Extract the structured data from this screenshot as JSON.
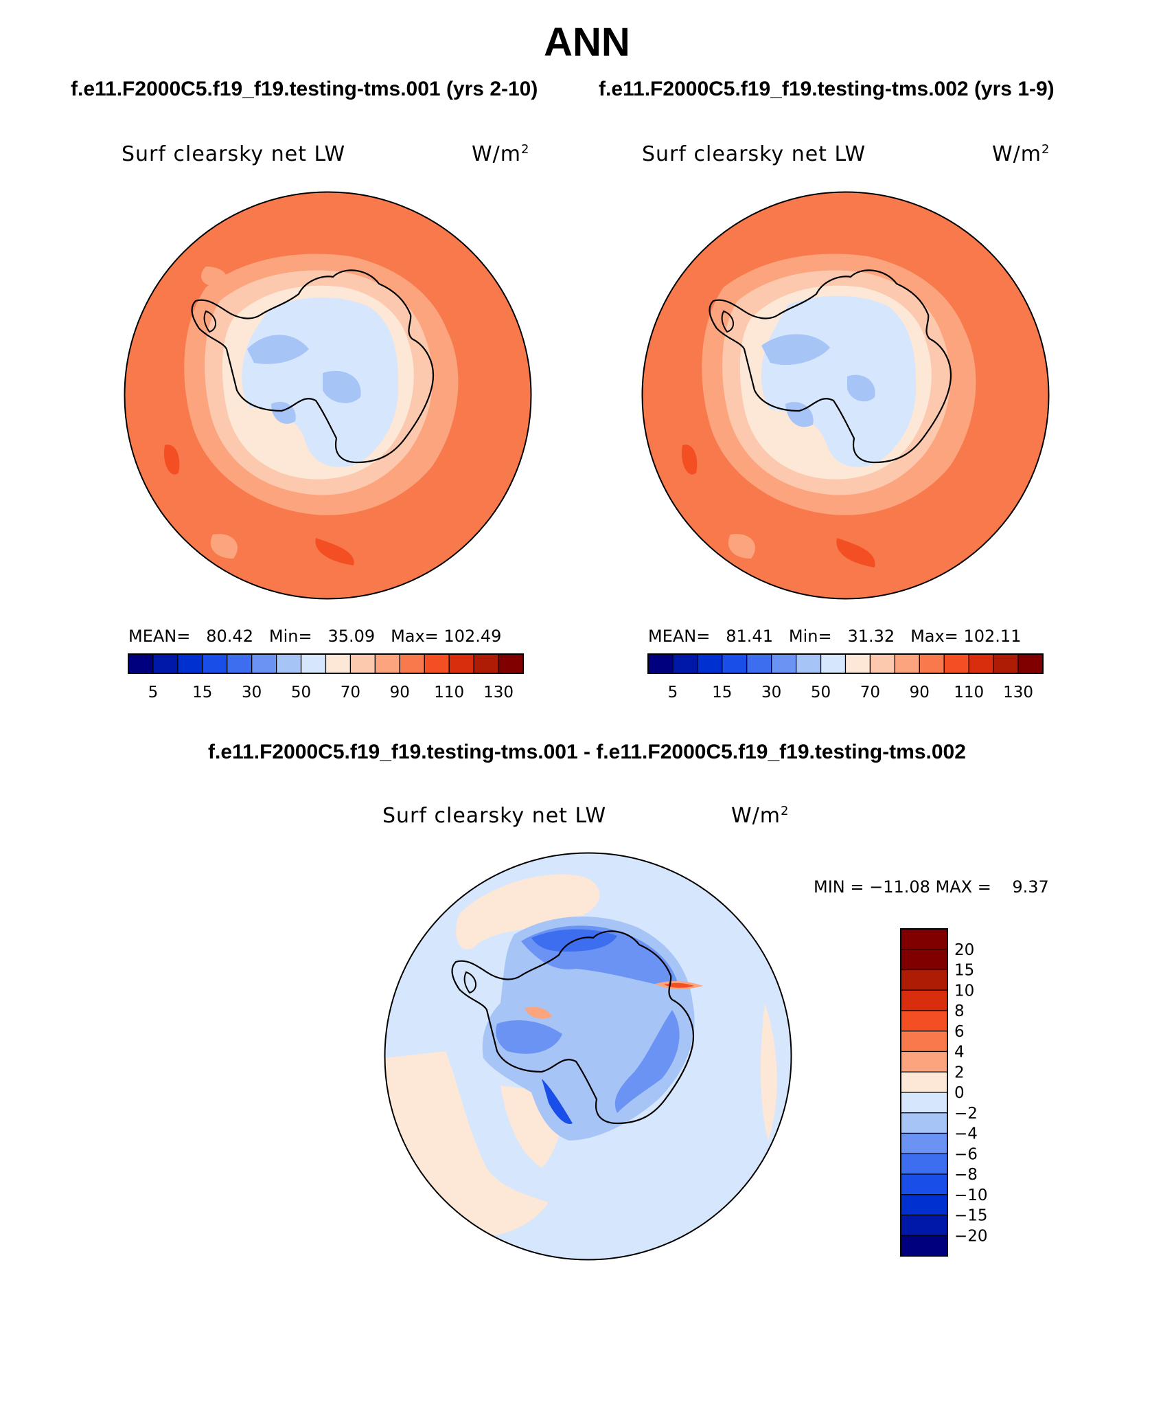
{
  "title": "ANN",
  "headers": {
    "left": "f.e11.F2000C5.f19_f19.testing-tms.001 (yrs 2-10)",
    "right": "f.e11.F2000C5.f19_f19.testing-tms.002 (yrs 1-9)",
    "diff": "f.e11.F2000C5.f19_f19.testing-tms.001 - f.e11.F2000C5.f19_f19.testing-tms.002"
  },
  "panels": [
    {
      "variable": "Surf clearsky net LW",
      "units": "W/m",
      "units_sup": "2",
      "mean_label": "MEAN=",
      "mean": "80.42",
      "min_label": "Min=",
      "min": "35.09",
      "max_label": "Max=",
      "max": "102.49"
    },
    {
      "variable": "Surf clearsky net LW",
      "units": "W/m",
      "units_sup": "2",
      "mean_label": "MEAN=",
      "mean": "81.41",
      "min_label": "Min=",
      "min": "31.32",
      "max_label": "Max=",
      "max": "102.11"
    },
    {
      "variable": "Surf clearsky net LW",
      "units": "W/m",
      "units_sup": "2",
      "minmax": "MIN = −11.08 MAX =    9.37"
    }
  ],
  "colorbar_main": {
    "colors": [
      "#00007f",
      "#0018a8",
      "#0030d0",
      "#1a4ee8",
      "#3e6ef0",
      "#6b93f3",
      "#a7c4f7",
      "#d6e6fc",
      "#fde7d7",
      "#fcc9ae",
      "#fba47d",
      "#f87a4c",
      "#f44e23",
      "#d92e0d",
      "#ae1c06",
      "#800000"
    ],
    "tick_labels": [
      "5",
      "15",
      "30",
      "50",
      "70",
      "90",
      "110",
      "130"
    ],
    "tick_after_box": [
      1,
      3,
      5,
      7,
      9,
      11,
      13,
      15
    ]
  },
  "colorbar_diff": {
    "colors_top_to_bottom": [
      "#800000",
      "#ae1c06",
      "#d92e0d",
      "#f44e23",
      "#f87a4c",
      "#fba47d",
      "#fde7d7",
      "#d6e6fc",
      "#a7c4f7",
      "#6b93f3",
      "#3e6ef0",
      "#1a4ee8",
      "#0030d0",
      "#0018a8",
      "#00007f"
    ],
    "tick_labels": [
      "20",
      "15",
      "10",
      "8",
      "6",
      "4",
      "2",
      "0",
      "−2",
      "−4",
      "−6",
      "−8",
      "−10",
      "−15",
      "−20"
    ]
  },
  "chart_data": [
    {
      "type": "map",
      "projection": "south polar stereographic",
      "title": "Surf clearsky net LW",
      "units": "W/m2",
      "case": "f.e11.F2000C5.f19_f19.testing-tms.001 (yrs 2-10)",
      "mean": 80.42,
      "min": 35.09,
      "max": 102.49,
      "contour_levels": [
        5,
        10,
        15,
        20,
        30,
        40,
        50,
        60,
        70,
        80,
        90,
        100,
        110,
        120,
        130
      ]
    },
    {
      "type": "map",
      "projection": "south polar stereographic",
      "title": "Surf clearsky net LW",
      "units": "W/m2",
      "case": "f.e11.F2000C5.f19_f19.testing-tms.002 (yrs 1-9)",
      "mean": 81.41,
      "min": 31.32,
      "max": 102.11,
      "contour_levels": [
        5,
        10,
        15,
        20,
        30,
        40,
        50,
        60,
        70,
        80,
        90,
        100,
        110,
        120,
        130
      ]
    },
    {
      "type": "map",
      "projection": "south polar stereographic",
      "title": "Surf clearsky net LW",
      "units": "W/m2",
      "case": "f.e11.F2000C5.f19_f19.testing-tms.001 - f.e11.F2000C5.f19_f19.testing-tms.002",
      "min": -11.08,
      "max": 9.37,
      "contour_levels": [
        -20,
        -15,
        -10,
        -8,
        -6,
        -4,
        -2,
        0,
        2,
        4,
        6,
        8,
        10,
        15,
        20
      ]
    }
  ]
}
